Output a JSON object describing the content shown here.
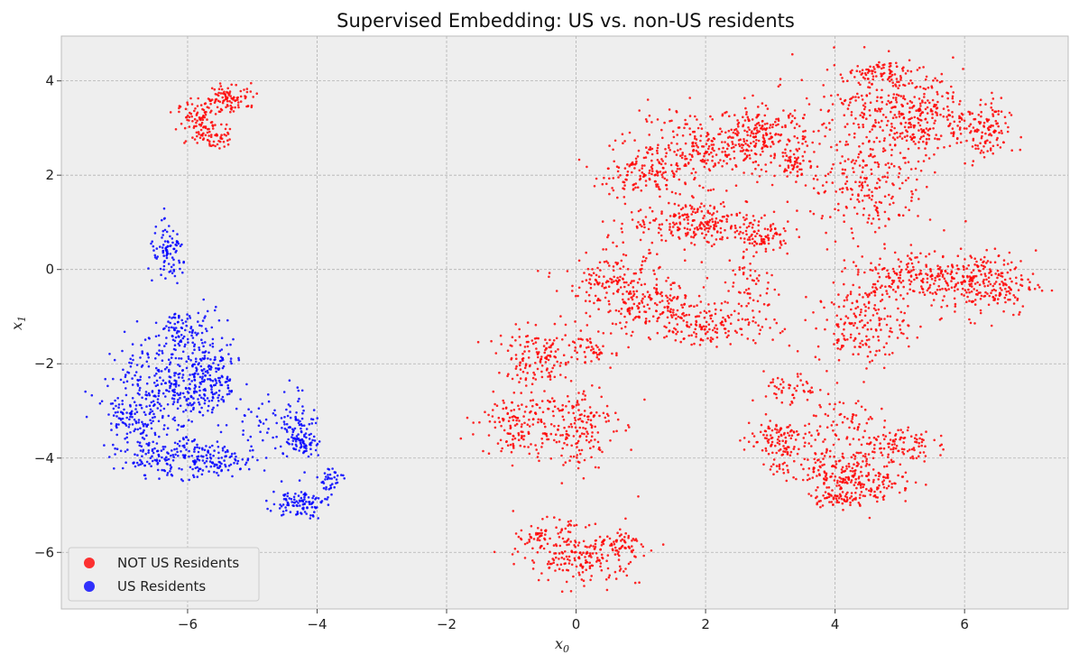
{
  "chart_data": {
    "type": "scatter",
    "title": "Supervised Embedding: US vs. non-US residents",
    "xlabel": {
      "base": "x",
      "sub": "0"
    },
    "ylabel": {
      "base": "x",
      "sub": "1"
    },
    "xlim": [
      -7.95,
      7.6
    ],
    "ylim": [
      -7.2,
      4.95
    ],
    "xticks": [
      -6,
      -4,
      -2,
      0,
      2,
      4,
      6
    ],
    "yticks": [
      -6,
      -4,
      -2,
      0,
      2,
      4
    ],
    "tick_labels_x": [
      "−6",
      "−4",
      "−2",
      "0",
      "2",
      "4",
      "6"
    ],
    "tick_labels_y": [
      "−6",
      "−4",
      "−2",
      "0",
      "2",
      "4"
    ],
    "grid": true,
    "legend_position": "lower-left",
    "series": [
      {
        "name": "NOT US Residents",
        "color": "#ff0000",
        "clusters": [
          {
            "x": -5.8,
            "y": 3.1,
            "sx": 0.18,
            "sy": 0.25,
            "n": 110
          },
          {
            "x": -5.3,
            "y": 3.65,
            "sx": 0.2,
            "sy": 0.15,
            "n": 90
          },
          {
            "x": -5.55,
            "y": 2.8,
            "sx": 0.1,
            "sy": 0.15,
            "n": 30
          },
          {
            "x": 1.0,
            "y": 2.0,
            "sx": 0.35,
            "sy": 0.2,
            "n": 120
          },
          {
            "x": 2.0,
            "y": 2.6,
            "sx": 0.6,
            "sy": 0.35,
            "n": 280
          },
          {
            "x": 2.9,
            "y": 2.85,
            "sx": 0.3,
            "sy": 0.3,
            "n": 150
          },
          {
            "x": 3.35,
            "y": 2.25,
            "sx": 0.12,
            "sy": 0.15,
            "n": 50
          },
          {
            "x": 1.9,
            "y": 1.0,
            "sx": 0.55,
            "sy": 0.25,
            "n": 240
          },
          {
            "x": 2.9,
            "y": 0.7,
            "sx": 0.2,
            "sy": 0.15,
            "n": 80
          },
          {
            "x": 0.6,
            "y": -0.3,
            "sx": 0.4,
            "sy": 0.35,
            "n": 160
          },
          {
            "x": 1.2,
            "y": -0.8,
            "sx": 0.4,
            "sy": 0.3,
            "n": 140
          },
          {
            "x": 2.1,
            "y": -1.2,
            "sx": 0.5,
            "sy": 0.2,
            "n": 150
          },
          {
            "x": 2.7,
            "y": -0.3,
            "sx": 0.2,
            "sy": 0.4,
            "n": 60
          },
          {
            "x": -0.6,
            "y": -1.9,
            "sx": 0.3,
            "sy": 0.3,
            "n": 140
          },
          {
            "x": -1.0,
            "y": -3.3,
            "sx": 0.25,
            "sy": 0.3,
            "n": 110
          },
          {
            "x": -0.1,
            "y": -3.3,
            "sx": 0.35,
            "sy": 0.45,
            "n": 200
          },
          {
            "x": 0.3,
            "y": -1.7,
            "sx": 0.2,
            "sy": 0.2,
            "n": 50
          },
          {
            "x": -0.5,
            "y": -5.6,
            "sx": 0.2,
            "sy": 0.15,
            "n": 60
          },
          {
            "x": 0.1,
            "y": -6.1,
            "sx": 0.45,
            "sy": 0.3,
            "n": 200
          },
          {
            "x": 0.7,
            "y": -5.8,
            "sx": 0.15,
            "sy": 0.12,
            "n": 40
          },
          {
            "x": 4.6,
            "y": 3.3,
            "sx": 0.6,
            "sy": 0.55,
            "n": 260
          },
          {
            "x": 4.7,
            "y": 4.2,
            "sx": 0.2,
            "sy": 0.1,
            "n": 60
          },
          {
            "x": 5.4,
            "y": 3.3,
            "sx": 0.3,
            "sy": 0.4,
            "n": 180
          },
          {
            "x": 4.5,
            "y": 1.7,
            "sx": 0.5,
            "sy": 0.5,
            "n": 200
          },
          {
            "x": 6.3,
            "y": 2.9,
            "sx": 0.2,
            "sy": 0.35,
            "n": 120
          },
          {
            "x": 6.3,
            "y": -0.3,
            "sx": 0.4,
            "sy": 0.35,
            "n": 240
          },
          {
            "x": 5.4,
            "y": -0.1,
            "sx": 0.45,
            "sy": 0.25,
            "n": 150
          },
          {
            "x": 4.4,
            "y": -1.2,
            "sx": 0.35,
            "sy": 0.4,
            "n": 170
          },
          {
            "x": 4.6,
            "y": -0.3,
            "sx": 0.3,
            "sy": 0.25,
            "n": 60
          },
          {
            "x": 3.1,
            "y": -3.6,
            "sx": 0.25,
            "sy": 0.25,
            "n": 110
          },
          {
            "x": 3.8,
            "y": -4.2,
            "sx": 0.4,
            "sy": 0.25,
            "n": 120
          },
          {
            "x": 4.5,
            "y": -4.5,
            "sx": 0.35,
            "sy": 0.25,
            "n": 150
          },
          {
            "x": 4.9,
            "y": -3.7,
            "sx": 0.3,
            "sy": 0.2,
            "n": 110
          },
          {
            "x": 4.0,
            "y": -4.85,
            "sx": 0.2,
            "sy": 0.08,
            "n": 50
          },
          {
            "x": 3.3,
            "y": -2.6,
            "sx": 0.2,
            "sy": 0.2,
            "n": 50
          },
          {
            "x": 4.2,
            "y": -3.2,
            "sx": 0.3,
            "sy": 0.3,
            "n": 60
          }
        ]
      },
      {
        "name": "US Residents",
        "color": "#0000ff",
        "clusters": [
          {
            "x": -6.3,
            "y": 0.3,
            "sx": 0.15,
            "sy": 0.3,
            "n": 90
          },
          {
            "x": -6.6,
            "y": -2.5,
            "sx": 0.35,
            "sy": 0.55,
            "n": 180
          },
          {
            "x": -6.0,
            "y": -2.3,
            "sx": 0.3,
            "sy": 0.6,
            "n": 200
          },
          {
            "x": -5.6,
            "y": -2.3,
            "sx": 0.2,
            "sy": 0.55,
            "n": 140
          },
          {
            "x": -6.9,
            "y": -3.2,
            "sx": 0.2,
            "sy": 0.3,
            "n": 80
          },
          {
            "x": -6.3,
            "y": -4.0,
            "sx": 0.4,
            "sy": 0.2,
            "n": 150
          },
          {
            "x": -5.5,
            "y": -4.05,
            "sx": 0.3,
            "sy": 0.15,
            "n": 90
          },
          {
            "x": -6.1,
            "y": -1.2,
            "sx": 0.15,
            "sy": 0.15,
            "n": 50
          },
          {
            "x": -4.3,
            "y": -3.3,
            "sx": 0.15,
            "sy": 0.4,
            "n": 90
          },
          {
            "x": -4.2,
            "y": -3.7,
            "sx": 0.1,
            "sy": 0.1,
            "n": 40
          },
          {
            "x": -4.3,
            "y": -4.95,
            "sx": 0.2,
            "sy": 0.15,
            "n": 100
          },
          {
            "x": -3.8,
            "y": -4.5,
            "sx": 0.1,
            "sy": 0.18,
            "n": 40
          },
          {
            "x": -4.9,
            "y": -3.3,
            "sx": 0.2,
            "sy": 0.3,
            "n": 30
          }
        ]
      }
    ]
  }
}
